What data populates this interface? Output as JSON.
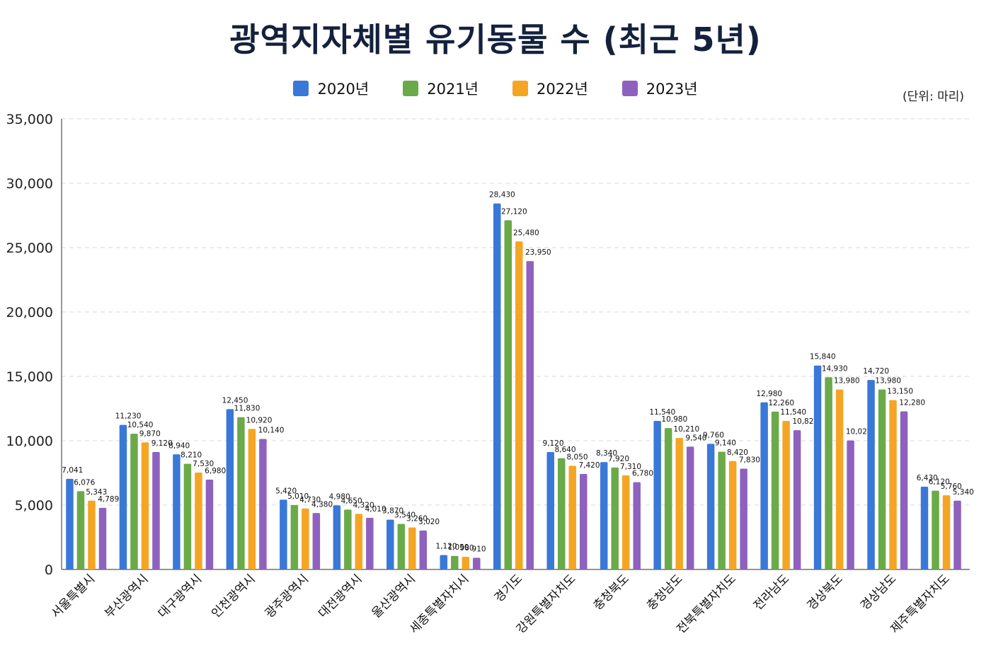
{
  "chart_data": {
    "type": "bar",
    "title": "광역지자체별 유기동물 수 (최근 5년)",
    "unit": "(단위: 마리)",
    "ylim": [
      0,
      35000
    ],
    "yticks": [
      "0",
      "5,000",
      "10,000",
      "15,000",
      "20,000",
      "25,000",
      "30,000",
      "35,000"
    ],
    "ytick_values": [
      0,
      5000,
      10000,
      15000,
      20000,
      25000,
      30000,
      35000
    ],
    "grid": true,
    "legend_position": "top-center",
    "categories": [
      "서울특별시",
      "부산광역시",
      "대구광역시",
      "인천광역시",
      "광주광역시",
      "대전광역시",
      "울산광역시",
      "세종특별자치시",
      "경기도",
      "강원특별자치도",
      "충청북도",
      "충청남도",
      "전북특별자치도",
      "전라남도",
      "경상북도",
      "경상남도",
      "제주특별자치도"
    ],
    "series": [
      {
        "name": "2020년",
        "color": "#3a78d8",
        "values": [
          7041,
          11230,
          8940,
          12450,
          5420,
          4980,
          3870,
          1120,
          28430,
          9120,
          8340,
          11540,
          9760,
          12980,
          15840,
          14720,
          6430
        ],
        "labels": [
          "7,041",
          "11,230",
          "8,940",
          "12,450",
          "5,420",
          "4,980",
          "3,870",
          "1,120",
          "28,430",
          "9,120",
          "8,340",
          "11,540",
          "9,760",
          "12,980",
          "15,840",
          "14,720",
          "6,430"
        ]
      },
      {
        "name": "2021년",
        "color": "#6aaa48",
        "values": [
          6076,
          10540,
          8210,
          11830,
          5010,
          4650,
          3540,
          1050,
          27120,
          8640,
          7920,
          10980,
          9140,
          12260,
          14930,
          13980,
          6120
        ],
        "labels": [
          "6,076",
          "10,540",
          "8,210",
          "11,830",
          "5,010",
          "4,650",
          "3,540",
          "1,050",
          "27,120",
          "8,640",
          "7,920",
          "10,980",
          "9,140",
          "12,260",
          "14,930",
          "13,980",
          "6,120"
        ]
      },
      {
        "name": "2022년",
        "color": "#f5a524",
        "values": [
          5343,
          9870,
          7530,
          10920,
          4730,
          4320,
          3260,
          980,
          25480,
          8050,
          7310,
          10210,
          8420,
          11540,
          13980,
          13150,
          5760
        ],
        "labels": [
          "5,343",
          "9,870",
          "7,530",
          "10,920",
          "4,730",
          "4,320",
          "3,260",
          "980",
          "25,480",
          "8,050",
          "7,310",
          "10,210",
          "8,420",
          "11,540",
          "13,980",
          "13,150",
          "5,760"
        ]
      },
      {
        "name": "2023년",
        "color": "#8e61bf",
        "values": [
          4789,
          9120,
          6980,
          10140,
          4380,
          4010,
          3020,
          910,
          23950,
          7420,
          6780,
          9540,
          7830,
          10820,
          10020,
          12280,
          5340
        ],
        "labels": [
          "4,789",
          "9,120",
          "6,980",
          "10,140",
          "4,380",
          "4,010",
          "3,020",
          "910",
          "23,950",
          "7,420",
          "6,780",
          "9,540",
          "7,830",
          "10,820",
          "10,020",
          "12,280",
          "5,340"
        ]
      }
    ]
  }
}
